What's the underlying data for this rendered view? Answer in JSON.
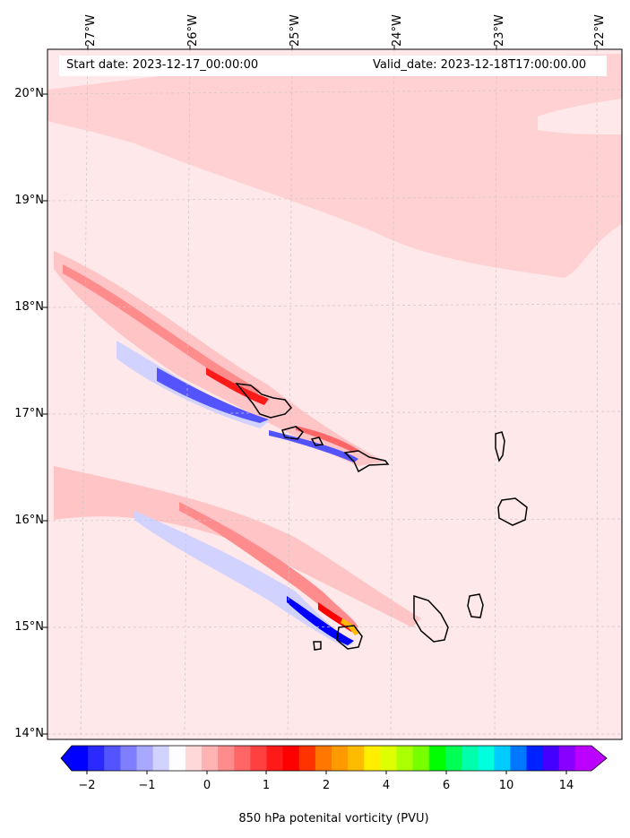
{
  "map": {
    "start_label": "Start date: 2023-12-17_00:00:00",
    "valid_label": "Valid_date: 2023-12-18T17:00:00.00",
    "longitudes": [
      "27°W",
      "26°W",
      "25°W",
      "24°W",
      "23°W",
      "22°W"
    ],
    "latitudes": [
      "20°N",
      "19°N",
      "18°N",
      "17°N",
      "16°N",
      "15°N",
      "14°N"
    ],
    "field": "850 hPa potential vorticity",
    "background_color": "#ffe8e9",
    "band_color": "#ffd1d3"
  },
  "colorbar": {
    "label": "850 hPa potenital vorticity (PVU)",
    "ticks": [
      "−2",
      "−1",
      "0",
      "1",
      "2",
      "4",
      "6",
      "10",
      "14"
    ],
    "colors": [
      "#0000ff",
      "#2a2aff",
      "#5454ff",
      "#7e7eff",
      "#a8a8ff",
      "#d2d2ff",
      "#fdfdff",
      "#ffd9d9",
      "#ffb3b3",
      "#ff8c8c",
      "#ff6666",
      "#ff4040",
      "#ff1a1a",
      "#ff0000",
      "#ff3300",
      "#ff7700",
      "#ff9900",
      "#ffbb00",
      "#ffee00",
      "#ddff00",
      "#aaff00",
      "#77ff00",
      "#00ff00",
      "#00ff55",
      "#00ffaa",
      "#00ffdd",
      "#00ccff",
      "#0077ff",
      "#0022ff",
      "#4400ff",
      "#8800ff",
      "#bb00ff"
    ]
  }
}
